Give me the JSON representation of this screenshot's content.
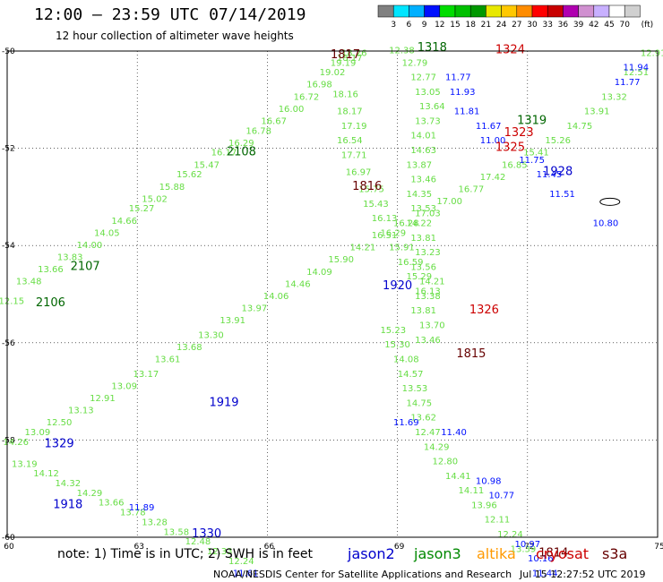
{
  "title": "12:00 – 23:59 UTC 07/14/2019",
  "subtitle": "12 hour collection of altimeter wave heights",
  "colorbar": {
    "unit": "(ft)",
    "levels": [
      "3",
      "6",
      "9",
      "12",
      "15",
      "18",
      "21",
      "24",
      "27",
      "30",
      "33",
      "36",
      "39",
      "42",
      "45",
      "70"
    ],
    "colors": [
      "#808080",
      "#00e5ff",
      "#00b0ff",
      "#0010ff",
      "#00dd00",
      "#00c000",
      "#009800",
      "#e8e800",
      "#ffc800",
      "#ff8c00",
      "#ff0000",
      "#c80000",
      "#b000b0",
      "#d090d0",
      "#c8b0ff",
      "#ffffff",
      "#d0d0d0"
    ]
  },
  "map": {
    "lon_range": [
      60,
      75
    ],
    "lat_range": [
      -60,
      -50
    ],
    "x_ticks": [
      "60",
      "63",
      "66",
      "69",
      "72",
      "75"
    ],
    "y_ticks": [
      "-50",
      "-52",
      "-54",
      "-56",
      "-58",
      "-60"
    ],
    "track_color": "#66dd44",
    "tracks": [
      {
        "label_color": "#006600",
        "points": [
          {
            "lon": 60.1,
            "lat": -55.2,
            "v": "12.15"
          },
          {
            "lon": 60.5,
            "lat": -54.8,
            "v": "13.48"
          },
          {
            "lon": 61.0,
            "lat": -54.55,
            "v": "13.66"
          },
          {
            "lon": 61.45,
            "lat": -54.3,
            "v": "13.83"
          },
          {
            "lon": 61.9,
            "lat": -54.05,
            "v": "14.00"
          },
          {
            "lon": 62.3,
            "lat": -53.8,
            "v": "14.05"
          },
          {
            "lon": 62.7,
            "lat": -53.55,
            "v": "14.66"
          },
          {
            "lon": 63.1,
            "lat": -53.3,
            "v": "15.27"
          },
          {
            "lon": 63.4,
            "lat": -53.1,
            "v": "15.02"
          },
          {
            "lon": 63.8,
            "lat": -52.85,
            "v": "15.88"
          },
          {
            "lon": 64.2,
            "lat": -52.6,
            "v": "15.62"
          },
          {
            "lon": 64.6,
            "lat": -52.4,
            "v": "15.47"
          },
          {
            "lon": 65.0,
            "lat": -52.15,
            "v": "16.17"
          },
          {
            "lon": 65.4,
            "lat": -51.95,
            "v": "16.29"
          },
          {
            "lon": 65.8,
            "lat": -51.7,
            "v": "16.78"
          },
          {
            "lon": 66.15,
            "lat": -51.5,
            "v": "16.67"
          },
          {
            "lon": 66.55,
            "lat": -51.25,
            "v": "16.00"
          },
          {
            "lon": 66.9,
            "lat": -51.0,
            "v": "16.72"
          },
          {
            "lon": 67.2,
            "lat": -50.75,
            "v": "16.98"
          },
          {
            "lon": 67.5,
            "lat": -50.5,
            "v": "19.02"
          },
          {
            "lon": 67.75,
            "lat": -50.3,
            "v": "19.19"
          },
          {
            "lon": 68.0,
            "lat": -50.1,
            "v": "18.26"
          }
        ]
      },
      {
        "label_color": "#660000",
        "points": [
          {
            "lon": 67.9,
            "lat": -50.2,
            "v": "18.17"
          },
          {
            "lon": 67.8,
            "lat": -50.95,
            "v": "18.16"
          },
          {
            "lon": 67.9,
            "lat": -51.3,
            "v": "18.17"
          },
          {
            "lon": 68.0,
            "lat": -51.6,
            "v": "17.19"
          },
          {
            "lon": 67.9,
            "lat": -51.9,
            "v": "16.54"
          },
          {
            "lon": 68.0,
            "lat": -52.2,
            "v": "17.71"
          },
          {
            "lon": 68.1,
            "lat": -52.55,
            "v": "16.97"
          },
          {
            "lon": 68.4,
            "lat": -52.9,
            "v": "15.75"
          },
          {
            "lon": 68.5,
            "lat": -53.2,
            "v": "15.43"
          },
          {
            "lon": 68.7,
            "lat": -53.5,
            "v": "16.13"
          },
          {
            "lon": 68.9,
            "lat": -53.8,
            "v": "16.29"
          },
          {
            "lon": 69.1,
            "lat": -54.1,
            "v": "15.91"
          },
          {
            "lon": 69.3,
            "lat": -54.4,
            "v": "16.59"
          },
          {
            "lon": 69.5,
            "lat": -54.7,
            "v": "15.29"
          },
          {
            "lon": 69.7,
            "lat": -55.0,
            "v": "16.13"
          }
        ]
      },
      {
        "label_color": "#006600",
        "points": [
          {
            "lon": 60.2,
            "lat": -58.1,
            "v": "14.26"
          },
          {
            "lon": 60.7,
            "lat": -57.9,
            "v": "13.09"
          },
          {
            "lon": 61.2,
            "lat": -57.7,
            "v": "12.50"
          },
          {
            "lon": 61.7,
            "lat": -57.45,
            "v": "13.13"
          },
          {
            "lon": 62.2,
            "lat": -57.2,
            "v": "12.91"
          },
          {
            "lon": 62.7,
            "lat": -56.95,
            "v": "13.09"
          },
          {
            "lon": 63.2,
            "lat": -56.7,
            "v": "13.17"
          },
          {
            "lon": 63.7,
            "lat": -56.4,
            "v": "13.61"
          },
          {
            "lon": 64.2,
            "lat": -56.15,
            "v": "13.68"
          },
          {
            "lon": 64.7,
            "lat": -55.9,
            "v": "13.30"
          },
          {
            "lon": 65.2,
            "lat": -55.6,
            "v": "13.91"
          },
          {
            "lon": 65.7,
            "lat": -55.35,
            "v": "13.97"
          },
          {
            "lon": 66.2,
            "lat": -55.1,
            "v": "14.06"
          },
          {
            "lon": 66.7,
            "lat": -54.85,
            "v": "14.46"
          },
          {
            "lon": 67.2,
            "lat": -54.6,
            "v": "14.09"
          },
          {
            "lon": 67.7,
            "lat": -54.35,
            "v": "15.90"
          },
          {
            "lon": 68.2,
            "lat": -54.1,
            "v": "14.21"
          },
          {
            "lon": 68.7,
            "lat": -53.85,
            "v": "16.51"
          },
          {
            "lon": 69.2,
            "lat": -53.6,
            "v": "16.28"
          },
          {
            "lon": 69.7,
            "lat": -53.4,
            "v": "17.03"
          },
          {
            "lon": 70.2,
            "lat": -53.15,
            "v": "17.00"
          },
          {
            "lon": 70.7,
            "lat": -52.9,
            "v": "16.77"
          },
          {
            "lon": 71.2,
            "lat": -52.65,
            "v": "17.42"
          },
          {
            "lon": 71.7,
            "lat": -52.4,
            "v": "16.85"
          },
          {
            "lon": 72.2,
            "lat": -52.15,
            "v": "15.41"
          },
          {
            "lon": 72.7,
            "lat": -51.9,
            "v": "15.26"
          },
          {
            "lon": 73.2,
            "lat": -51.6,
            "v": "14.75"
          },
          {
            "lon": 73.6,
            "lat": -51.3,
            "v": "13.91"
          },
          {
            "lon": 74.0,
            "lat": -51.0,
            "v": "13.32"
          },
          {
            "lon": 74.5,
            "lat": -50.5,
            "v": "12.51"
          },
          {
            "lon": 74.9,
            "lat": -50.1,
            "v": "12.91"
          }
        ]
      },
      {
        "label_color": "#006600",
        "points": [
          {
            "lon": 69.1,
            "lat": -50.05,
            "v": "12.38"
          },
          {
            "lon": 69.4,
            "lat": -50.3,
            "v": "12.79"
          },
          {
            "lon": 69.6,
            "lat": -50.6,
            "v": "12.77"
          },
          {
            "lon": 69.7,
            "lat": -50.9,
            "v": "13.05"
          },
          {
            "lon": 69.8,
            "lat": -51.2,
            "v": "13.64"
          },
          {
            "lon": 69.7,
            "lat": -51.5,
            "v": "13.73"
          },
          {
            "lon": 69.6,
            "lat": -51.8,
            "v": "14.01"
          },
          {
            "lon": 69.6,
            "lat": -52.1,
            "v": "14.63"
          },
          {
            "lon": 69.5,
            "lat": -52.4,
            "v": "13.87"
          },
          {
            "lon": 69.6,
            "lat": -52.7,
            "v": "13.46"
          },
          {
            "lon": 69.5,
            "lat": -53.0,
            "v": "14.35"
          },
          {
            "lon": 69.6,
            "lat": -53.3,
            "v": "13.53"
          },
          {
            "lon": 69.5,
            "lat": -53.6,
            "v": "14.22"
          },
          {
            "lon": 69.6,
            "lat": -53.9,
            "v": "13.81"
          },
          {
            "lon": 69.7,
            "lat": -54.2,
            "v": "13.23"
          },
          {
            "lon": 69.6,
            "lat": -54.5,
            "v": "13.56"
          },
          {
            "lon": 69.8,
            "lat": -54.8,
            "v": "14.21"
          },
          {
            "lon": 69.7,
            "lat": -55.1,
            "v": "13.38"
          },
          {
            "lon": 69.6,
            "lat": -55.4,
            "v": "13.81"
          },
          {
            "lon": 69.8,
            "lat": -55.7,
            "v": "13.70"
          },
          {
            "lon": 69.7,
            "lat": -56.0,
            "v": "13.46"
          }
        ]
      },
      {
        "label_color": "#006600",
        "points": [
          {
            "lon": 68.9,
            "lat": -55.8,
            "v": "15.23"
          },
          {
            "lon": 69.0,
            "lat": -56.1,
            "v": "15.30"
          },
          {
            "lon": 69.2,
            "lat": -56.4,
            "v": "14.08"
          },
          {
            "lon": 69.3,
            "lat": -56.7,
            "v": "14.57"
          },
          {
            "lon": 69.4,
            "lat": -57.0,
            "v": "13.53"
          },
          {
            "lon": 69.5,
            "lat": -57.3,
            "v": "14.75"
          },
          {
            "lon": 69.6,
            "lat": -57.6,
            "v": "13.62"
          },
          {
            "lon": 69.7,
            "lat": -57.9,
            "v": "12.47"
          },
          {
            "lon": 69.9,
            "lat": -58.2,
            "v": "14.29"
          },
          {
            "lon": 70.1,
            "lat": -58.5,
            "v": "12.80"
          },
          {
            "lon": 70.4,
            "lat": -58.8,
            "v": "14.41"
          },
          {
            "lon": 70.7,
            "lat": -59.1,
            "v": "14.11"
          },
          {
            "lon": 71.0,
            "lat": -59.4,
            "v": "13.96"
          },
          {
            "lon": 71.3,
            "lat": -59.7,
            "v": "12.11"
          },
          {
            "lon": 71.6,
            "lat": -60.0,
            "v": "12.24"
          },
          {
            "lon": 71.9,
            "lat": -60.3,
            "v": "13.39"
          }
        ]
      },
      {
        "label_color": "#006600",
        "points": [
          {
            "lon": 60.4,
            "lat": -58.55,
            "v": "13.19"
          },
          {
            "lon": 60.9,
            "lat": -58.75,
            "v": "14.12"
          },
          {
            "lon": 61.4,
            "lat": -58.95,
            "v": "14.32"
          },
          {
            "lon": 61.9,
            "lat": -59.15,
            "v": "14.29"
          },
          {
            "lon": 62.4,
            "lat": -59.35,
            "v": "13.66"
          },
          {
            "lon": 62.9,
            "lat": -59.55,
            "v": "13.78"
          },
          {
            "lon": 63.4,
            "lat": -59.75,
            "v": "13.28"
          },
          {
            "lon": 63.9,
            "lat": -59.95,
            "v": "13.58"
          },
          {
            "lon": 64.4,
            "lat": -60.15,
            "v": "12.48"
          },
          {
            "lon": 64.9,
            "lat": -60.35,
            "v": "12.33"
          },
          {
            "lon": 65.4,
            "lat": -60.55,
            "v": "12.24"
          }
        ]
      }
    ],
    "blue_values": [
      {
        "lon": 70.4,
        "lat": -50.6,
        "v": "11.77"
      },
      {
        "lon": 70.5,
        "lat": -50.9,
        "v": "11.93"
      },
      {
        "lon": 70.6,
        "lat": -51.3,
        "v": "11.81"
      },
      {
        "lon": 71.1,
        "lat": -51.6,
        "v": "11.67"
      },
      {
        "lon": 71.2,
        "lat": -51.9,
        "v": "11.00"
      },
      {
        "lon": 72.1,
        "lat": -52.3,
        "v": "11.75"
      },
      {
        "lon": 72.5,
        "lat": -52.6,
        "v": "11.45"
      },
      {
        "lon": 72.8,
        "lat": -53.0,
        "v": "11.51"
      },
      {
        "lon": 73.8,
        "lat": -53.6,
        "v": "10.80"
      },
      {
        "lon": 74.5,
        "lat": -50.4,
        "v": "11.94"
      },
      {
        "lon": 74.3,
        "lat": -50.7,
        "v": "11.77"
      },
      {
        "lon": 69.2,
        "lat": -57.7,
        "v": "11.69"
      },
      {
        "lon": 70.3,
        "lat": -57.9,
        "v": "11.40"
      },
      {
        "lon": 71.1,
        "lat": -58.9,
        "v": "10.98"
      },
      {
        "lon": 71.4,
        "lat": -59.2,
        "v": "10.77"
      },
      {
        "lon": 72.0,
        "lat": -60.2,
        "v": "10.97"
      },
      {
        "lon": 72.3,
        "lat": -60.5,
        "v": "10.16"
      },
      {
        "lon": 72.4,
        "lat": -60.8,
        "v": "11.44"
      },
      {
        "lon": 63.1,
        "lat": -59.45,
        "v": "11.89"
      },
      {
        "lon": 65.5,
        "lat": -60.8,
        "v": "11.61"
      }
    ],
    "labels": [
      {
        "lon": 67.8,
        "lat": -50.15,
        "text": "1817",
        "color": "#660000"
      },
      {
        "lon": 65.4,
        "lat": -52.15,
        "text": "2108",
        "color": "#006600"
      },
      {
        "lon": 68.3,
        "lat": -52.85,
        "text": "1816",
        "color": "#660000"
      },
      {
        "lon": 61.8,
        "lat": -54.5,
        "text": "2107",
        "color": "#006600"
      },
      {
        "lon": 61.0,
        "lat": -55.25,
        "text": "2106",
        "color": "#006600"
      },
      {
        "lon": 69.8,
        "lat": -50.0,
        "text": "1318",
        "color": "#006600"
      },
      {
        "lon": 71.6,
        "lat": -50.05,
        "text": "1324",
        "color": "#cc0000"
      },
      {
        "lon": 72.1,
        "lat": -51.5,
        "text": "1319",
        "color": "#006600"
      },
      {
        "lon": 71.8,
        "lat": -51.75,
        "text": "1323",
        "color": "#cc0000"
      },
      {
        "lon": 71.6,
        "lat": -52.05,
        "text": "1325",
        "color": "#cc0000"
      },
      {
        "lon": 72.7,
        "lat": -52.55,
        "text": "1928",
        "color": "#0000cc"
      },
      {
        "lon": 69.0,
        "lat": -54.9,
        "text": "1920",
        "color": "#0000cc"
      },
      {
        "lon": 71.0,
        "lat": -55.4,
        "text": "1326",
        "color": "#cc0000"
      },
      {
        "lon": 70.7,
        "lat": -56.3,
        "text": "1815",
        "color": "#660000"
      },
      {
        "lon": 65.0,
        "lat": -57.3,
        "text": "1919",
        "color": "#0000cc"
      },
      {
        "lon": 61.2,
        "lat": -58.15,
        "text": "1329",
        "color": "#0000cc"
      },
      {
        "lon": 61.4,
        "lat": -59.4,
        "text": "1918",
        "color": "#0000cc"
      },
      {
        "lon": 64.6,
        "lat": -60.0,
        "text": "1330",
        "color": "#0000cc"
      },
      {
        "lon": 72.6,
        "lat": -60.4,
        "text": "1814",
        "color": "#660000"
      }
    ]
  },
  "footer": {
    "note": "note: 1) Time is in UTC; 2) SWH is in feet",
    "satellites": [
      {
        "name": "jason2",
        "color": "#0000cc"
      },
      {
        "name": "jason3",
        "color": "#008800"
      },
      {
        "name": "altika",
        "color": "#ff9900"
      },
      {
        "name": "cryosat",
        "color": "#cc0000"
      },
      {
        "name": "s3a",
        "color": "#660000"
      }
    ],
    "credit": "NOAA/NESDIS Center for Satellite Applications and Research",
    "timestamp": "Jul 15 12:27:52 UTC 2019"
  }
}
